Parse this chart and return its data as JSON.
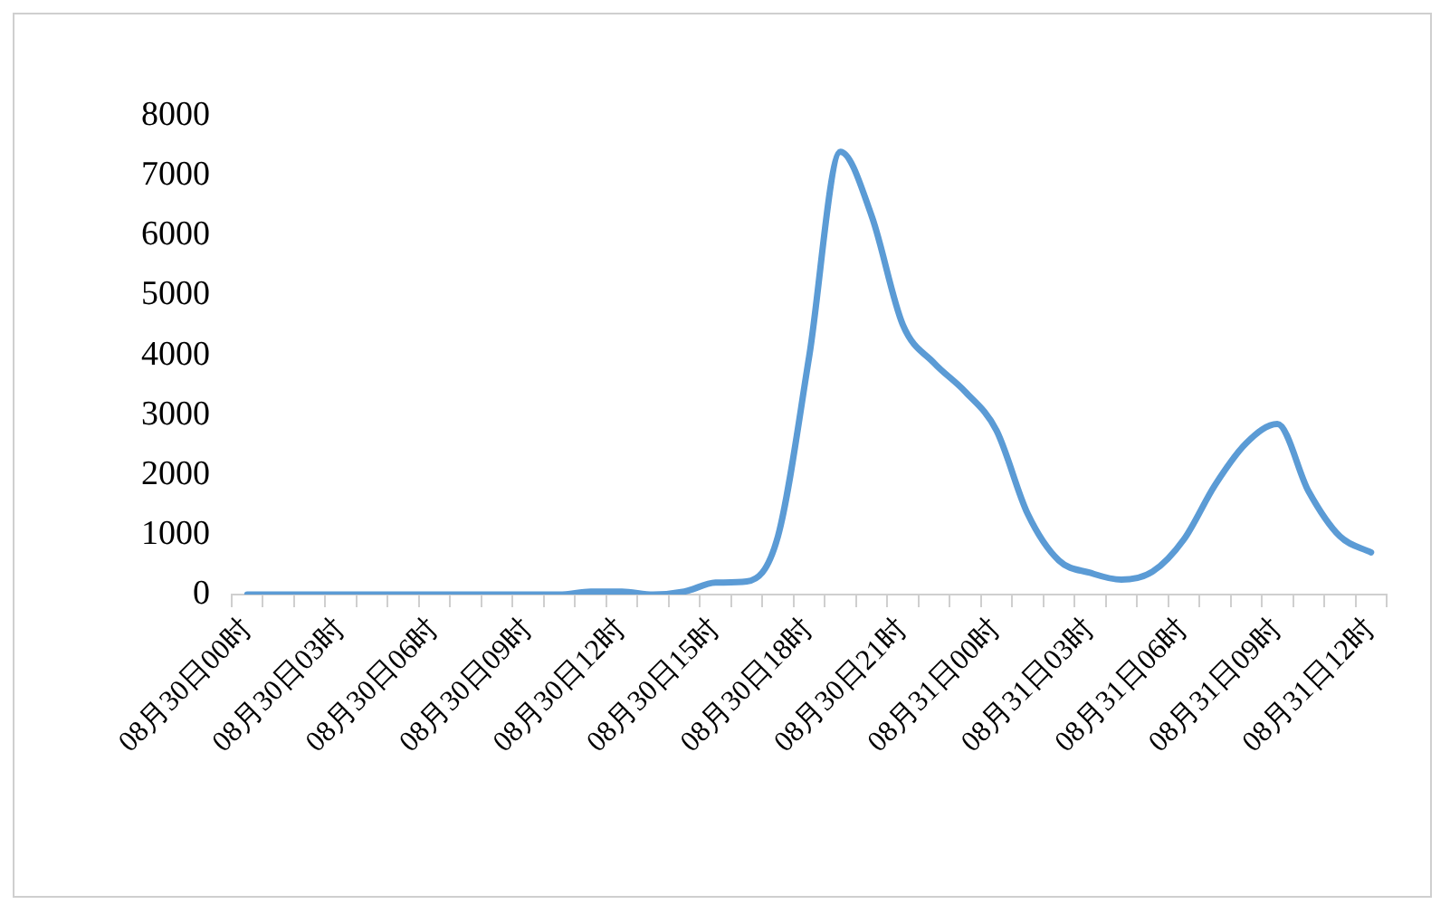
{
  "chart_data": {
    "type": "line",
    "categories": [
      "08月30日00时",
      null,
      null,
      "08月30日03时",
      null,
      null,
      "08月30日06时",
      null,
      null,
      "08月30日09时",
      null,
      null,
      "08月30日12时",
      null,
      null,
      "08月30日15时",
      null,
      null,
      "08月30日18时",
      null,
      null,
      "08月30日21时",
      null,
      null,
      "08月31日00时",
      null,
      null,
      "08月31日03时",
      null,
      null,
      "08月31日06时",
      null,
      null,
      "08月31日09时",
      null,
      null,
      "08月31日12时"
    ],
    "series": [
      {
        "color": "#5b9bd5",
        "values": [
          0,
          0,
          0,
          0,
          0,
          0,
          0,
          0,
          0,
          0,
          0,
          50,
          50,
          0,
          50,
          200,
          220,
          975,
          3980,
          7400,
          6330,
          4510,
          3870,
          3390,
          2745,
          1350,
          570,
          365,
          250,
          385,
          920,
          1830,
          2530,
          2850,
          1725,
          975,
          705
        ]
      }
    ],
    "ylim": [
      0,
      8000
    ],
    "yticks": [
      0,
      1000,
      2000,
      3000,
      4000,
      5000,
      6000,
      7000,
      8000
    ],
    "grid": false,
    "legend": false,
    "marker": "none",
    "line_style": "solid"
  }
}
